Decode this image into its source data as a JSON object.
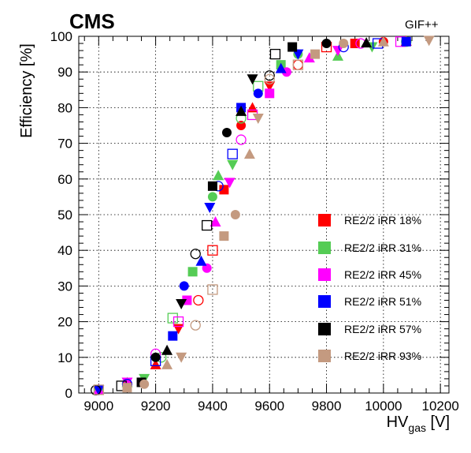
{
  "chart_data": {
    "type": "scatter",
    "experiment_label": "CMS",
    "facility_label": "GIF++",
    "ylabel": "Efficiency [%]",
    "xlabel_main": "HV",
    "xlabel_sub": "gas",
    "xlabel_unit": " [V]",
    "xlim": [
      8930,
      10230
    ],
    "ylim": [
      0,
      100
    ],
    "xticks": [
      9000,
      9200,
      9400,
      9600,
      9800,
      10000,
      10200
    ],
    "yticks": [
      0,
      10,
      20,
      30,
      40,
      50,
      60,
      70,
      80,
      90,
      100
    ],
    "grid": true,
    "legend_position": "right-middle",
    "series": [
      {
        "name": "RE2/2 iRR 18%",
        "color": "#ff0000",
        "marker": "square",
        "points": [
          [
            9000,
            0.8
          ],
          [
            9100,
            2.5
          ],
          [
            9200,
            8
          ],
          [
            9280,
            18
          ],
          [
            9350,
            26
          ],
          [
            9400,
            40
          ],
          [
            9440,
            57
          ],
          [
            9500,
            75
          ],
          [
            9540,
            80
          ],
          [
            9600,
            86
          ],
          [
            9700,
            92
          ],
          [
            9800,
            97
          ],
          [
            9900,
            98
          ],
          [
            10000,
            98.5
          ],
          [
            10080,
            98.7
          ]
        ]
      },
      {
        "name": "RE2/2 iRR 31%",
        "color": "#55cc55",
        "marker": "square",
        "points": [
          [
            9000,
            0.9
          ],
          [
            9100,
            3
          ],
          [
            9160,
            4
          ],
          [
            9220,
            10
          ],
          [
            9260,
            21
          ],
          [
            9330,
            34
          ],
          [
            9400,
            55
          ],
          [
            9420,
            61
          ],
          [
            9470,
            64
          ],
          [
            9500,
            77
          ],
          [
            9560,
            86
          ],
          [
            9640,
            92
          ],
          [
            9700,
            95
          ],
          [
            9840,
            94.5
          ],
          [
            9960,
            97
          ],
          [
            10080,
            98.5
          ]
        ]
      },
      {
        "name": "RE2/2 iRR 45%",
        "color": "#ff00ff",
        "marker": "square",
        "points": [
          [
            9000,
            1
          ],
          [
            9100,
            3
          ],
          [
            9200,
            11
          ],
          [
            9280,
            20
          ],
          [
            9310,
            26
          ],
          [
            9380,
            35
          ],
          [
            9410,
            48
          ],
          [
            9460,
            59
          ],
          [
            9500,
            71
          ],
          [
            9540,
            78
          ],
          [
            9600,
            84
          ],
          [
            9660,
            90
          ],
          [
            9740,
            94
          ],
          [
            9840,
            96
          ],
          [
            9920,
            98
          ],
          [
            10060,
            98.5
          ]
        ]
      },
      {
        "name": "RE2/2 iRR 51%",
        "color": "#0000ff",
        "marker": "square",
        "points": [
          [
            9000,
            0.8
          ],
          [
            9100,
            2.5
          ],
          [
            9200,
            9
          ],
          [
            9260,
            16
          ],
          [
            9300,
            30
          ],
          [
            9360,
            37
          ],
          [
            9390,
            52
          ],
          [
            9420,
            58
          ],
          [
            9470,
            67
          ],
          [
            9500,
            80
          ],
          [
            9560,
            84
          ],
          [
            9640,
            91
          ],
          [
            9700,
            95
          ],
          [
            9860,
            97
          ],
          [
            9980,
            98
          ],
          [
            10080,
            98.5
          ]
        ]
      },
      {
        "name": "RE2/2 iRR 57%",
        "color": "#000000",
        "marker": "square",
        "points": [
          [
            8990,
            0.8
          ],
          [
            9080,
            2
          ],
          [
            9150,
            3
          ],
          [
            9200,
            10
          ],
          [
            9240,
            12
          ],
          [
            9290,
            25
          ],
          [
            9340,
            39
          ],
          [
            9380,
            47
          ],
          [
            9400,
            58
          ],
          [
            9450,
            73
          ],
          [
            9500,
            79
          ],
          [
            9540,
            88
          ],
          [
            9600,
            89
          ],
          [
            9620,
            95
          ],
          [
            9680,
            97
          ],
          [
            9800,
            98
          ],
          [
            9940,
            98.2
          ]
        ]
      },
      {
        "name": "RE2/2 iRR 93%",
        "color": "#c49a80",
        "marker": "square",
        "points": [
          [
            9000,
            0.9
          ],
          [
            9100,
            1.5
          ],
          [
            9160,
            2.5
          ],
          [
            9240,
            8
          ],
          [
            9290,
            10
          ],
          [
            9340,
            19
          ],
          [
            9400,
            29
          ],
          [
            9440,
            44
          ],
          [
            9480,
            50
          ],
          [
            9530,
            67
          ],
          [
            9560,
            77
          ],
          [
            9600,
            88
          ],
          [
            9700,
            92
          ],
          [
            9760,
            95
          ],
          [
            9860,
            98
          ],
          [
            10000,
            98.5
          ],
          [
            10160,
            98.8
          ]
        ]
      }
    ]
  }
}
